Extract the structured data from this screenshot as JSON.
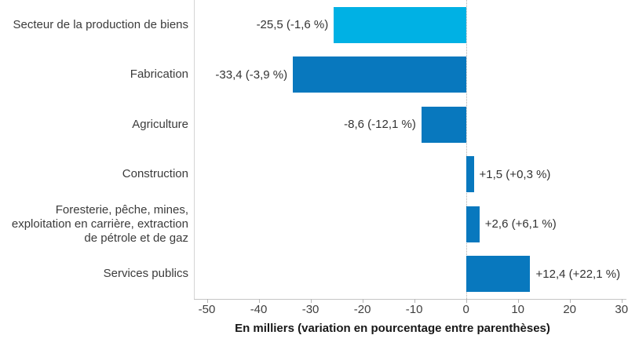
{
  "chart_data": {
    "type": "bar",
    "orientation": "horizontal",
    "title": "",
    "xlabel": "En milliers (variation en pourcentage entre parenthèses)",
    "xlim": [
      -52.5,
      30.8
    ],
    "x_ticks": [
      -50,
      -40,
      -30,
      -20,
      -10,
      0,
      10,
      20,
      30
    ],
    "x_tick_labels": [
      "-50",
      "-40",
      "-30",
      "-20",
      "-10",
      "0",
      "10",
      "20",
      "30"
    ],
    "grid": "zero-line-dotted-vertical",
    "legend_position": "none",
    "categories": [
      "Secteur de la production de biens",
      "Fabrication",
      "Agriculture",
      "Construction",
      "Foresterie, pêche, mines, exploitation en carrière, extraction de pétrole et de gaz",
      "Services publics"
    ],
    "values": [
      -25.5,
      -33.4,
      -8.6,
      1.5,
      2.6,
      12.4
    ],
    "percent_change": [
      -1.6,
      -3.9,
      -12.1,
      0.3,
      6.1,
      22.1
    ],
    "bar_labels": [
      "-25,5 (-1,6 %)",
      "-33,4 (-3,9 %)",
      "-8,6 (-12,1 %)",
      "+1,5 (+0,3 %)",
      "+2,6 (+6,1 %)",
      "+12,4 (+22,1 %)"
    ],
    "bar_colors": [
      "#00b1e4",
      "#0878be",
      "#0878be",
      "#0878be",
      "#0878be",
      "#0878be"
    ]
  },
  "colors": {
    "bar_highlight": "#00b1e4",
    "bar_default": "#0878be",
    "axis_line": "#c6c6c6",
    "zero_line": "#aeaeae",
    "text": "#333333"
  }
}
